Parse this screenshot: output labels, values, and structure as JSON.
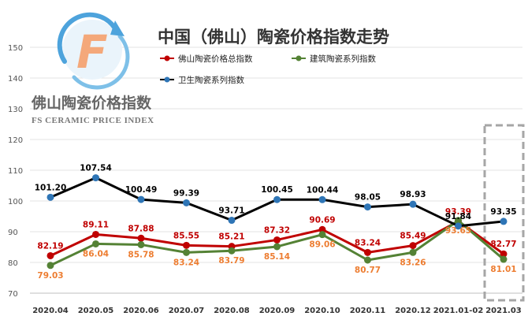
{
  "chart_data": {
    "type": "line",
    "title": "中国（佛山）陶瓷价格指数走势",
    "brand": {
      "name_cn": "佛山陶瓷价格指数",
      "name_en": "FS CERAMIC PRICE INDEX",
      "logo_letter": "F"
    },
    "xlabel": "",
    "ylabel": "",
    "ylim": [
      70,
      150
    ],
    "yticks": [
      70,
      80,
      90,
      100,
      110,
      120,
      130,
      140,
      150
    ],
    "categories": [
      "2020.04",
      "2020.05",
      "2020.06",
      "2020.07",
      "2020.08",
      "2020.09",
      "2020.10",
      "2020.11",
      "2020.12",
      "2021.01-02",
      "2021.03"
    ],
    "grid": true,
    "legend_position": "top",
    "series": [
      {
        "name": "佛山陶瓷价格总指数",
        "color": "#c00000",
        "label_color": "#c00000",
        "label_pos": "above",
        "values": [
          82.19,
          89.11,
          87.88,
          85.55,
          85.21,
          87.32,
          90.69,
          83.24,
          85.49,
          93.39,
          82.77
        ],
        "labels": [
          "82.19",
          "89.11",
          "87.88",
          "85.55",
          "85.21",
          "87.32",
          "90.69",
          "83.24",
          "85.49",
          "93.39",
          "82.77"
        ]
      },
      {
        "name": "建筑陶瓷系列指数",
        "color": "#548235",
        "label_color": "#ed7d31",
        "label_pos": "below",
        "values": [
          79.03,
          86.04,
          85.78,
          83.24,
          83.79,
          85.14,
          89.06,
          80.77,
          83.26,
          93.65,
          81.01
        ],
        "labels": [
          "79.03",
          "86.04",
          "85.78",
          "83.24",
          "83.79",
          "85.14",
          "89.06",
          "80.77",
          "83.26",
          "93.65",
          "81.01"
        ]
      },
      {
        "name": "卫生陶瓷系列指数",
        "color": "#000000",
        "marker_color": "#2e75b6",
        "label_color": "#000000",
        "label_pos": "above",
        "values": [
          101.2,
          107.54,
          100.49,
          99.39,
          93.71,
          100.45,
          100.44,
          98.05,
          98.93,
          91.84,
          93.35
        ],
        "labels": [
          "101.20",
          "107.54",
          "100.49",
          "99.39",
          "93.71",
          "100.45",
          "100.44",
          "98.05",
          "98.93",
          "91.84",
          "93.35"
        ]
      }
    ],
    "highlight": {
      "category": "2021.03",
      "style": "dashed-box",
      "color": "#a6a6a6"
    }
  }
}
